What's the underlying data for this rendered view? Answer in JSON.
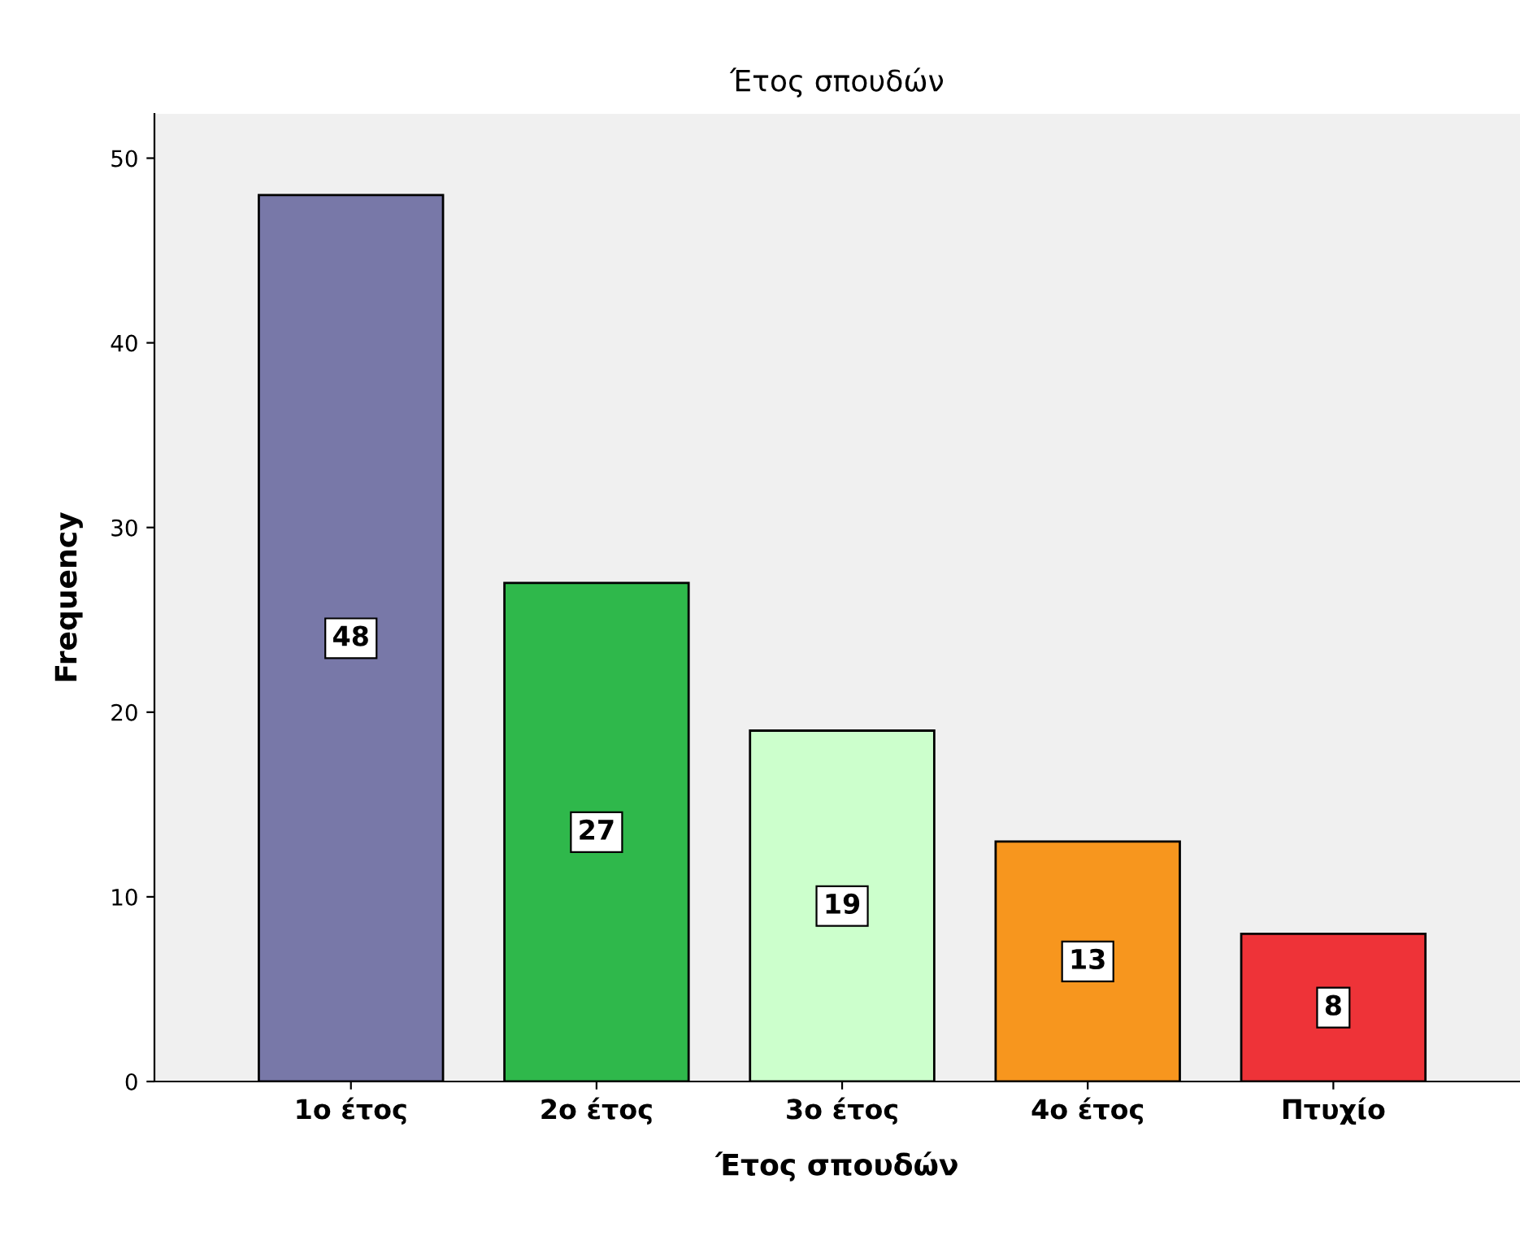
{
  "chart_data": {
    "type": "bar",
    "title": "Έτος σπουδών",
    "xlabel": "Έτος σπουδών",
    "ylabel": "Frequency",
    "categories": [
      "1ο έτος",
      "2ο έτος",
      "3ο έτος",
      "4ο έτος",
      "Πτυχίο"
    ],
    "values": [
      48,
      27,
      19,
      13,
      8
    ],
    "colors": [
      "#7878a8",
      "#2fb84b",
      "#ccffcc",
      "#f7961e",
      "#ee3338"
    ],
    "ylim": [
      0,
      52.4
    ],
    "yticks": [
      0,
      10,
      20,
      30,
      40,
      50
    ],
    "grid": false,
    "data_labels": true
  }
}
